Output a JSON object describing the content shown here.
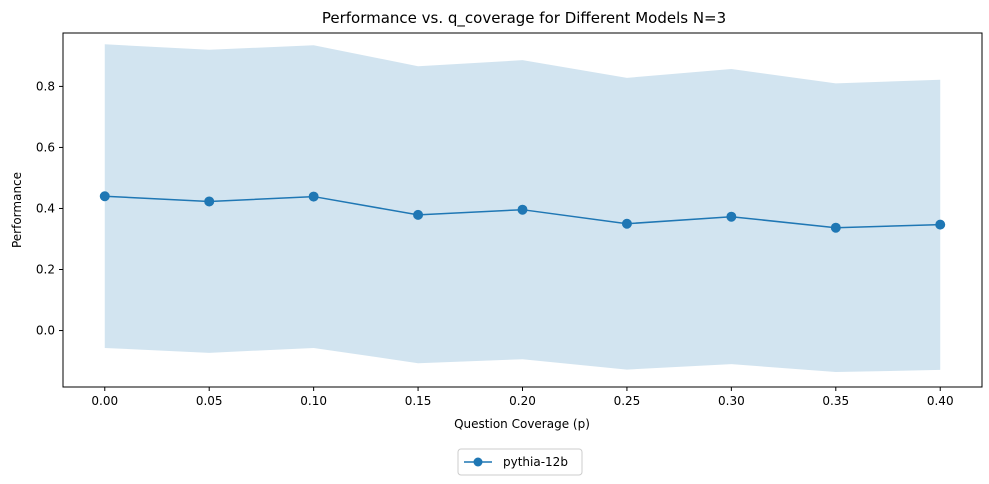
{
  "chart_data": {
    "type": "line",
    "title": "Performance vs. q_coverage for Different Models N=3",
    "xlabel": "Question Coverage (p)",
    "ylabel": "Performance",
    "xlim": [
      -0.02,
      0.42
    ],
    "ylim": [
      -0.185,
      0.975
    ],
    "x_ticks": [
      0.0,
      0.05,
      0.1,
      0.15,
      0.2,
      0.25,
      0.3,
      0.35,
      0.4
    ],
    "x_tick_labels": [
      "0.00",
      "0.05",
      "0.10",
      "0.15",
      "0.20",
      "0.25",
      "0.30",
      "0.35",
      "0.40"
    ],
    "y_ticks": [
      0.0,
      0.2,
      0.4,
      0.6,
      0.8
    ],
    "y_tick_labels": [
      "0.0",
      "0.2",
      "0.4",
      "0.6",
      "0.8"
    ],
    "grid": false,
    "legend_position": "bottom-center-outside",
    "x": [
      0.0,
      0.05,
      0.1,
      0.15,
      0.2,
      0.25,
      0.3,
      0.35,
      0.4
    ],
    "series": [
      {
        "name": "pythia-12b",
        "color": "#1f77b4",
        "band_color": "#1f77b4",
        "marker": "circle",
        "values": [
          0.44,
          0.423,
          0.439,
          0.379,
          0.396,
          0.35,
          0.373,
          0.337,
          0.347
        ],
        "band_upper": [
          0.938,
          0.92,
          0.935,
          0.866,
          0.886,
          0.828,
          0.857,
          0.81,
          0.822
        ],
        "band_lower": [
          -0.057,
          -0.073,
          -0.057,
          -0.107,
          -0.094,
          -0.128,
          -0.11,
          -0.136,
          -0.129
        ]
      }
    ]
  }
}
